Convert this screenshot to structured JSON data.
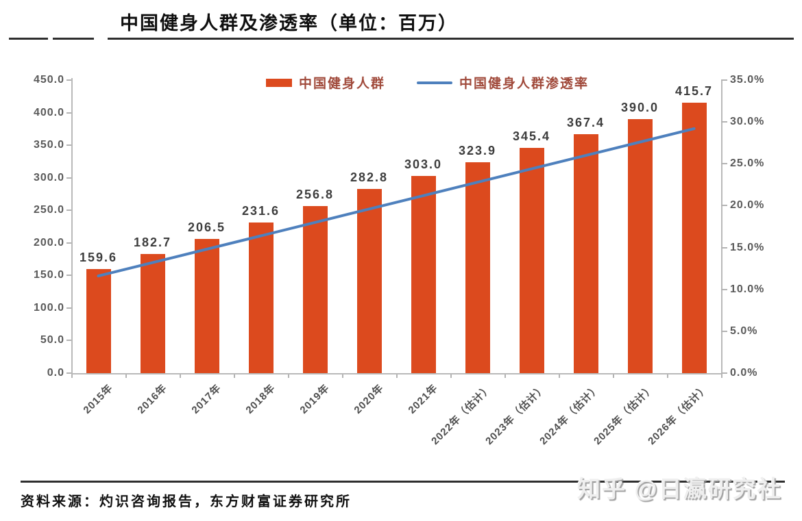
{
  "header": {
    "title": "中国健身人群及渗透率（单位：百万）"
  },
  "colors": {
    "bar": "#dc4a1e",
    "line": "#4e80bd",
    "legend_text": "#a0493a",
    "axis": "#b3b3b3",
    "tick_label": "#595959",
    "value_label": "#3d3d3d",
    "rule": "#2e2e2e"
  },
  "chart_data": {
    "type": "bar",
    "title": "中国健身人群及渗透率（单位：百万）",
    "unit": "百万",
    "categories": [
      "2015年",
      "2016年",
      "2017年",
      "2018年",
      "2019年",
      "2020年",
      "2021年",
      "2022年（估计）",
      "2023年（估计）",
      "2024年（估计）",
      "2025年（估计）",
      "2026年（估计）"
    ],
    "series": [
      {
        "name": "中国健身人群",
        "type": "bar",
        "y_axis": "left",
        "values": [
          159.6,
          182.7,
          206.5,
          231.6,
          256.8,
          282.8,
          303.0,
          323.9,
          345.4,
          367.4,
          390.0,
          415.7
        ]
      },
      {
        "name": "中国健身人群渗透率",
        "type": "line",
        "y_axis": "right",
        "unit": "%",
        "values": [
          11.6,
          13.2,
          14.8,
          16.4,
          18.0,
          19.6,
          21.2,
          22.8,
          24.4,
          26.0,
          27.6,
          29.2
        ]
      }
    ],
    "left_axis": {
      "min": 0,
      "max": 450,
      "tick_step": 50,
      "tick_labels": [
        "450.0",
        "400.0",
        "350.0",
        "300.0",
        "250.0",
        "200.0",
        "150.0",
        "100.0",
        "50.0",
        "0.0"
      ]
    },
    "right_axis": {
      "min": 0,
      "max": 35,
      "tick_step": 5,
      "tick_labels": [
        "35.0%",
        "30.0%",
        "25.0%",
        "20.0%",
        "15.0%",
        "10.0%",
        "5.0%",
        "0.0%"
      ]
    },
    "legend_position": "top-center",
    "grid": false,
    "value_labels": "above bars"
  },
  "footer": {
    "source_note": "资料来源：灼识咨询报告，东方财富证券研究所"
  },
  "watermark": {
    "text": "知乎 @日瀛研究社"
  }
}
